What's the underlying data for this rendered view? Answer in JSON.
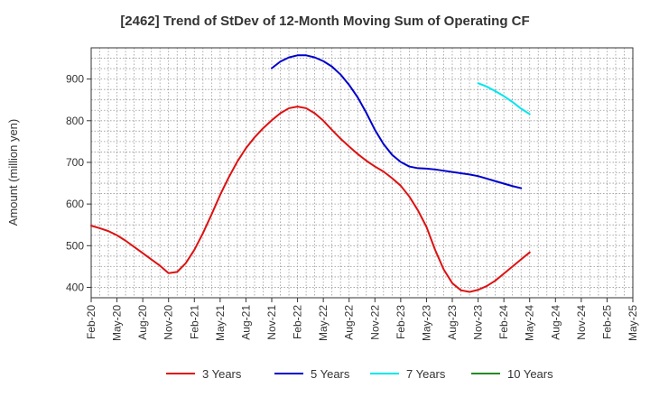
{
  "chart_data": {
    "type": "line",
    "title": "[2462]  Trend of StDev of 12-Month Moving Sum of Operating CF",
    "xlabel": "",
    "ylabel": "Amount (million yen)",
    "ylim": [
      375,
      975
    ],
    "yticks": [
      400,
      500,
      600,
      700,
      800,
      900
    ],
    "x_tick_labels": [
      "Feb-20",
      "May-20",
      "Aug-20",
      "Nov-20",
      "Feb-21",
      "May-21",
      "Aug-21",
      "Nov-21",
      "Feb-22",
      "May-22",
      "Aug-22",
      "Nov-22",
      "Feb-23",
      "May-23",
      "Aug-23",
      "Nov-23",
      "Feb-24",
      "May-24",
      "Aug-24",
      "Nov-24",
      "Feb-25",
      "May-25"
    ],
    "grid": true,
    "legend_position": "bottom",
    "series": [
      {
        "name": "3 Years",
        "color": "#dd1111",
        "start_index": 0,
        "values": [
          548,
          542,
          535,
          525,
          512,
          497,
          482,
          467,
          452,
          434,
          437,
          458,
          490,
          530,
          575,
          622,
          664,
          702,
          734,
          760,
          782,
          801,
          818,
          830,
          834,
          830,
          818,
          800,
          778,
          757,
          738,
          720,
          704,
          690,
          678,
          662,
          644,
          618,
          585,
          545,
          490,
          443,
          410,
          393,
          389,
          394,
          403,
          416,
          433,
          450,
          467,
          484
        ]
      },
      {
        "name": "5 Years",
        "color": "#0000cc",
        "start_index": 21,
        "values": [
          926,
          942,
          952,
          957,
          957,
          952,
          943,
          930,
          911,
          886,
          856,
          819,
          778,
          744,
          718,
          701,
          690,
          686,
          685,
          683,
          680,
          677,
          674,
          671,
          667,
          661,
          655,
          649,
          643,
          638
        ]
      },
      {
        "name": "7 Years",
        "color": "#00e5ee",
        "start_index": 45,
        "values": [
          890,
          882,
          871,
          859,
          845,
          829,
          816
        ]
      },
      {
        "name": "10 Years",
        "color": "#228b22",
        "start_index": 0,
        "values": []
      }
    ]
  }
}
